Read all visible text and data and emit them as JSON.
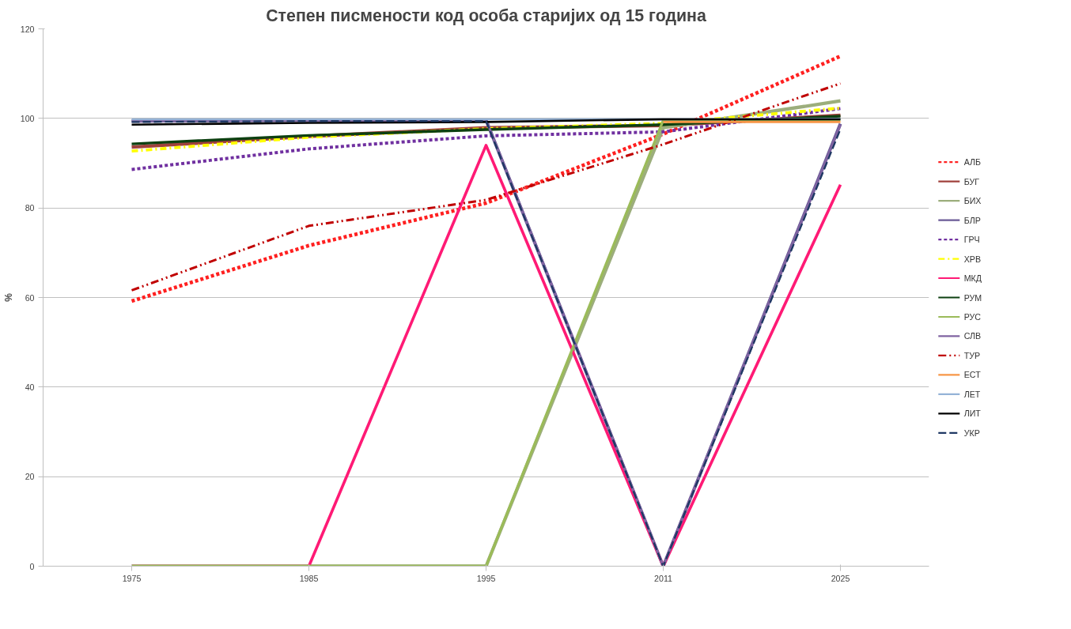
{
  "chart_data": {
    "type": "line",
    "title": "Степен писмености код особа старијих од 15 година",
    "ylabel": "%",
    "categories": [
      "1975",
      "1985",
      "1995",
      "2011",
      "2025"
    ],
    "ylim": [
      0,
      120
    ],
    "yticks": [
      0,
      20,
      40,
      60,
      80,
      100,
      120
    ],
    "grid": "y",
    "legend": "right",
    "marker": "none",
    "series": [
      {
        "name": "АЛБ",
        "color": "#ff2020",
        "line_style": "dashed",
        "values": [
          59.2,
          71.6,
          81.1,
          96.5,
          113.9
        ]
      },
      {
        "name": "БУГ",
        "color": "#a0413c",
        "line_style": "solid",
        "values": [
          93.6,
          96.0,
          97.9,
          98.4,
          100.7
        ]
      },
      {
        "name": "БИХ",
        "color": "#9cae7c",
        "line_style": "solid",
        "values": [
          0,
          0,
          0,
          97.9,
          103.9
        ]
      },
      {
        "name": "БЛР",
        "color": "#6a5a96",
        "line_style": "solid",
        "values": [
          99.4,
          99.6,
          99.6,
          0,
          98.8
        ]
      },
      {
        "name": "ГРЧ",
        "color": "#7030a0",
        "line_style": "dashed",
        "values": [
          88.6,
          93.2,
          96.1,
          97.0,
          102.2
        ]
      },
      {
        "name": "ХРВ",
        "color": "#ffff00",
        "line_style": "dashdot",
        "values": [
          92.7,
          95.8,
          97.7,
          98.9,
          102.3
        ]
      },
      {
        "name": "МКД",
        "color": "#ff1a75",
        "line_style": "solid",
        "values": [
          0,
          0,
          94.0,
          0,
          85.2
        ]
      },
      {
        "name": "РУМ",
        "color": "#0d4010",
        "line_style": "solid",
        "values": [
          94.3,
          96.2,
          97.5,
          98.6,
          100.5
        ]
      },
      {
        "name": "РУС",
        "color": "#9bbb59",
        "line_style": "solid",
        "values": [
          0,
          0,
          0,
          99.6,
          99.7
        ]
      },
      {
        "name": "СЛВ",
        "color": "#8064a2",
        "line_style": "solid",
        "values": [
          99.5,
          99.6,
          99.7,
          0,
          98.6
        ]
      },
      {
        "name": "ТУР",
        "color": "#c00000",
        "line_style": "dashdotdot",
        "values": [
          61.6,
          76.0,
          81.8,
          94.2,
          107.8
        ]
      },
      {
        "name": "ЕСТ",
        "color": "#f79646",
        "line_style": "solid",
        "values": [
          null,
          null,
          null,
          99.2,
          99.2
        ]
      },
      {
        "name": "ЛЕТ",
        "color": "#95b3d7",
        "line_style": "solid",
        "values": [
          99.8,
          99.8,
          99.8,
          99.8,
          99.9
        ]
      },
      {
        "name": "ЛИТ",
        "color": "#000000",
        "line_style": "solid",
        "values": [
          98.6,
          99.0,
          99.2,
          99.8,
          99.8
        ]
      },
      {
        "name": "УКР",
        "color": "#1f3864",
        "line_style": "longdash",
        "values": [
          99.2,
          99.4,
          99.4,
          0,
          97.6
        ]
      }
    ]
  }
}
